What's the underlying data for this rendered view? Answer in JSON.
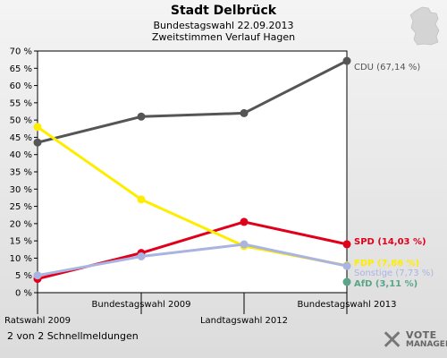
{
  "header": {
    "title": "Stadt Delbrück",
    "subtitle1": "Bundestagswahl 22.09.2013",
    "subtitle2": "Zweitstimmen Verlauf Hagen"
  },
  "footer": {
    "text": "2 von 2 Schnellmeldungen"
  },
  "logo": {
    "line1": "VOTE",
    "line2": "MANAGER"
  },
  "chart_data": {
    "type": "line",
    "categories": [
      "Ratswahl 2009",
      "Bundestagswahl 2009",
      "Landtagswahl 2012",
      "Bundestagswahl 2013"
    ],
    "y_ticks": [
      "0 %",
      "5 %",
      "10 %",
      "15 %",
      "20 %",
      "25 %",
      "30 %",
      "35 %",
      "40 %",
      "45 %",
      "50 %",
      "55 %",
      "60 %",
      "65 %",
      "70 %"
    ],
    "ylim": [
      0,
      70
    ],
    "grid": false,
    "series": [
      {
        "name": "CDU",
        "label": "CDU (67,14 %)",
        "color": "#555555",
        "values": [
          43.5,
          51.0,
          52.0,
          67.14
        ]
      },
      {
        "name": "SPD",
        "label": "SPD (14,03 %)",
        "color": "#e0001b",
        "values": [
          4.0,
          11.5,
          20.5,
          14.03
        ]
      },
      {
        "name": "FDP",
        "label": "FDP (7,86 %)",
        "color": "#ffed00",
        "values": [
          48.0,
          27.0,
          13.5,
          7.86
        ]
      },
      {
        "name": "Sonstige",
        "label": "Sonstige (7,73 %)",
        "color": "#aab4e0",
        "values": [
          5.0,
          10.5,
          14.0,
          7.73
        ]
      },
      {
        "name": "AfD",
        "label": "AfD (3,11 %)",
        "color": "#5aa58a",
        "values": [
          null,
          null,
          null,
          3.11
        ]
      }
    ]
  }
}
